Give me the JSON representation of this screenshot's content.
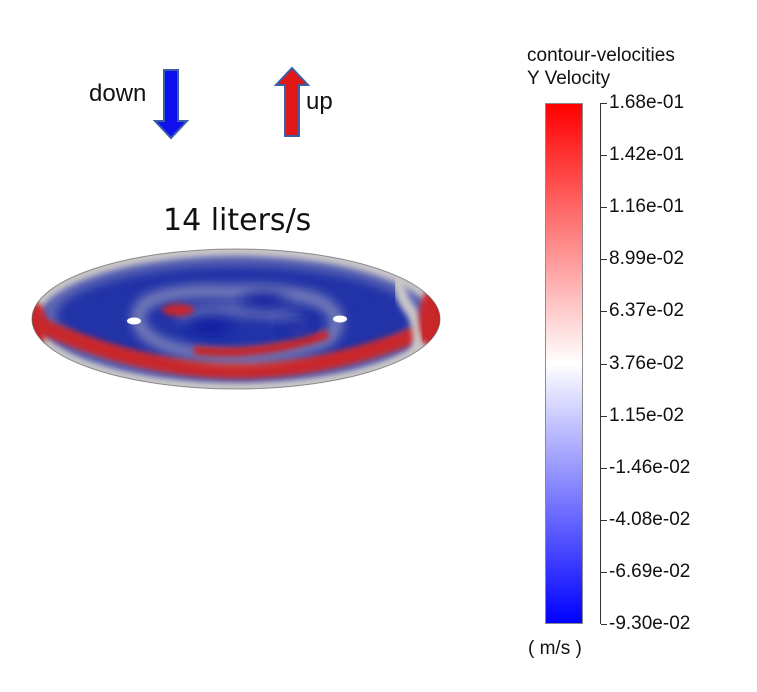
{
  "arrows": {
    "down": {
      "label": "down",
      "color": "#1010ee",
      "icon": "arrow-down-icon"
    },
    "up": {
      "label": "up",
      "color": "#e01818",
      "icon": "arrow-up-icon"
    },
    "outline_color": "#3a5fa8"
  },
  "flow_rate": {
    "text": "14 liters/s"
  },
  "legend": {
    "title": "contour-velocities",
    "subtitle": "Y Velocity",
    "units": "( m/s )",
    "colormap": [
      "#0000ff",
      "#ffffff",
      "#ff0000"
    ],
    "min": -0.093,
    "max": 0.168,
    "ticks": [
      "1.68e-01",
      "1.42e-01",
      "1.16e-01",
      "8.99e-02",
      "6.37e-02",
      "3.76e-02",
      "1.15e-02",
      "-1.46e-02",
      "-4.08e-02",
      "-6.69e-02",
      "-9.30e-02"
    ]
  },
  "contour": {
    "field": "Y Velocity",
    "background_color": "#2233a8",
    "high_color": "#c9282a",
    "mid_color": "#c9c6c8"
  }
}
